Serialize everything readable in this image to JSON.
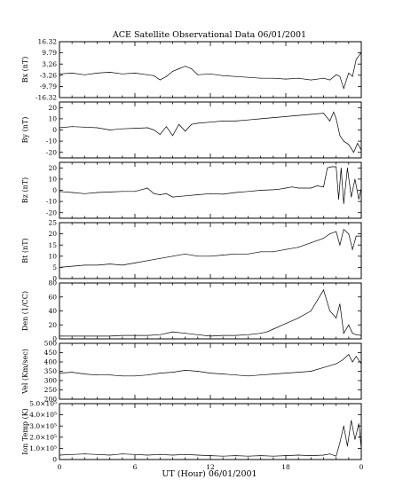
{
  "chart_data": {
    "type": "line",
    "title": "ACE Satellite Observational Data   06/01/2001",
    "xlabel": "UT (Hour)   06/01/2001",
    "x_ticks": [
      "0",
      "6",
      "12",
      "18",
      "0"
    ],
    "xlim": [
      0,
      24
    ],
    "panels": [
      {
        "ylabel": "Bx (nT)",
        "ylim": [
          -16.32,
          16.32
        ],
        "y_ticks": [
          "16.32",
          "9.79",
          "3.26",
          "-3.26",
          "-9.79",
          "-16.32"
        ],
        "y_tick_values": [
          16.32,
          9.79,
          3.26,
          -3.26,
          -9.79,
          -16.32
        ],
        "series": [
          {
            "x": [
              0,
              1,
              2,
              3,
              4,
              5,
              6,
              7,
              7.5,
              8,
              8.5,
              9,
              9.5,
              10,
              10.5,
              11,
              12,
              13,
              14,
              15,
              16,
              17,
              18,
              19,
              20,
              21,
              21.5,
              22,
              22.3,
              22.6,
              23,
              23.3,
              23.6,
              24
            ],
            "y": [
              -2.5,
              -2,
              -3,
              -2,
              -1.5,
              -2.5,
              -2,
              -3,
              -3.5,
              -6,
              -4,
              -1,
              0.5,
              2,
              0.5,
              -3,
              -2.5,
              -3.5,
              -4,
              -4.5,
              -5,
              -5,
              -5.5,
              -5,
              -6,
              -5,
              -6,
              -3,
              -4,
              -11,
              -2,
              -4,
              6,
              10
            ]
          }
        ]
      },
      {
        "ylabel": "By (nT)",
        "ylim": [
          -25,
          25
        ],
        "y_ticks": [
          "20",
          "10",
          "0",
          "-10",
          "-20"
        ],
        "y_tick_values": [
          20,
          10,
          0,
          -10,
          -20
        ],
        "series": [
          {
            "x": [
              0,
              1,
              2,
              3,
              4,
              5,
              6,
              7,
              7.5,
              8,
              8.5,
              9,
              9.5,
              10,
              10.5,
              11,
              12,
              13,
              14,
              15,
              16,
              17,
              18,
              19,
              20,
              21,
              21.5,
              21.8,
              22,
              22.3,
              22.6,
              23,
              23.4,
              23.7,
              24
            ],
            "y": [
              2,
              3,
              2.5,
              2,
              0,
              1,
              1.5,
              2,
              0,
              -4,
              3,
              -5,
              5,
              -1,
              5,
              6,
              7,
              8,
              8,
              9,
              10,
              11,
              12,
              13,
              14,
              15,
              8,
              16,
              10,
              -5,
              -10,
              -13,
              -20,
              -12,
              -18
            ]
          }
        ]
      },
      {
        "ylabel": "Bz (nT)",
        "ylim": [
          -25,
          25
        ],
        "y_ticks": [
          "20",
          "10",
          "0",
          "-10",
          "-20"
        ],
        "y_tick_values": [
          20,
          10,
          0,
          -10,
          -20
        ],
        "series": [
          {
            "x": [
              0,
              1,
              2,
              3,
              4,
              5,
              6,
              7,
              7.5,
              8,
              8.5,
              9,
              10,
              11,
              12,
              13,
              14,
              15,
              16,
              17,
              17.5,
              18,
              18.5,
              19,
              20,
              20.5,
              21,
              21.3,
              21.6,
              22,
              22.2,
              22.4,
              22.6,
              22.9,
              23.2,
              23.5,
              23.8,
              24
            ],
            "y": [
              -1,
              -2,
              -3,
              -2,
              -1.5,
              -1,
              -1,
              2,
              -3,
              -4,
              -3,
              -6,
              -5,
              -4,
              -3,
              -3.5,
              -2,
              -1,
              0,
              0.5,
              1,
              2,
              3,
              2,
              2,
              4,
              3,
              20,
              21,
              21,
              -8,
              20,
              -12,
              20,
              -6,
              10,
              -8,
              2
            ]
          }
        ]
      },
      {
        "ylabel": "Bt (nT)",
        "ylim": [
          0,
          25
        ],
        "y_ticks": [
          "25",
          "20",
          "15",
          "10",
          "5",
          "0"
        ],
        "y_tick_values": [
          25,
          20,
          15,
          10,
          5,
          0
        ],
        "series": [
          {
            "x": [
              0,
              1,
              2,
              3,
              4,
              5,
              6,
              7,
              8,
              9,
              10,
              11,
              12,
              13,
              14,
              15,
              16,
              17,
              18,
              19,
              20,
              21,
              21.5,
              22,
              22.3,
              22.6,
              23,
              23.3,
              23.6,
              24
            ],
            "y": [
              5,
              5.5,
              6,
              6,
              6.5,
              6,
              7,
              8,
              9,
              10,
              11,
              10,
              10,
              10.5,
              11,
              11,
              12,
              12,
              13,
              14,
              16,
              18,
              20,
              21,
              15,
              22,
              20,
              13,
              19,
              19
            ]
          }
        ]
      },
      {
        "ylabel": "Den (1/CC)",
        "ylim": [
          0,
          80
        ],
        "y_ticks": [
          "80",
          "60",
          "40",
          "20",
          "0"
        ],
        "y_tick_values": [
          80,
          60,
          40,
          20,
          0
        ],
        "series": [
          {
            "x": [
              0,
              1,
              2,
              3,
              4,
              5,
              6,
              7,
              8,
              9,
              10,
              11,
              12,
              13,
              14,
              15,
              16,
              16.5,
              17,
              18,
              19,
              20,
              20.5,
              21,
              21.5,
              22,
              22.3,
              22.6,
              23,
              23.3,
              23.6,
              24
            ],
            "y": [
              4,
              4,
              4,
              4,
              4,
              5,
              5,
              5,
              6,
              10,
              8,
              6,
              4,
              5,
              5,
              6,
              8,
              10,
              14,
              22,
              30,
              40,
              55,
              70,
              40,
              30,
              50,
              8,
              20,
              8,
              6,
              5
            ]
          }
        ]
      },
      {
        "ylabel": "Vel (Km/sec)",
        "ylim": [
          200,
          500
        ],
        "y_ticks": [
          "500",
          "450",
          "400",
          "350",
          "300",
          "250",
          "200"
        ],
        "y_tick_values": [
          500,
          450,
          400,
          350,
          300,
          250,
          200
        ],
        "series": [
          {
            "x": [
              0,
              1,
              2,
              3,
              4,
              5,
              6,
              7,
              8,
              9,
              10,
              11,
              12,
              13,
              14,
              15,
              16,
              17,
              18,
              19,
              20,
              21,
              22,
              22.5,
              23,
              23.3,
              23.6,
              24
            ],
            "y": [
              340,
              345,
              335,
              330,
              330,
              325,
              325,
              330,
              340,
              345,
              355,
              350,
              340,
              335,
              330,
              325,
              330,
              335,
              340,
              345,
              350,
              370,
              390,
              410,
              440,
              400,
              430,
              390
            ]
          }
        ]
      },
      {
        "ylabel": "Ion Temp (K)",
        "ylim": [
          0,
          500000
        ],
        "y_ticks": [
          "5.0×10⁵",
          "4.0×10⁵",
          "3.0×10⁵",
          "2.0×10⁵",
          "1.0×10⁵",
          "0"
        ],
        "y_tick_values": [
          500000,
          400000,
          300000,
          200000,
          100000,
          0
        ],
        "series": [
          {
            "x": [
              0,
              1,
              2,
              3,
              4,
              5,
              6,
              7,
              8,
              9,
              10,
              11,
              12,
              13,
              14,
              15,
              16,
              17,
              18,
              19,
              20,
              21,
              21.5,
              22,
              22.3,
              22.6,
              22.9,
              23.2,
              23.5,
              23.8,
              24
            ],
            "y": [
              40000,
              45000,
              50000,
              45000,
              40000,
              50000,
              45000,
              40000,
              45000,
              40000,
              45000,
              40000,
              35000,
              30000,
              35000,
              30000,
              35000,
              30000,
              35000,
              40000,
              35000,
              40000,
              50000,
              30000,
              150000,
              300000,
              120000,
              350000,
              180000,
              320000,
              100000
            ]
          }
        ]
      }
    ]
  }
}
